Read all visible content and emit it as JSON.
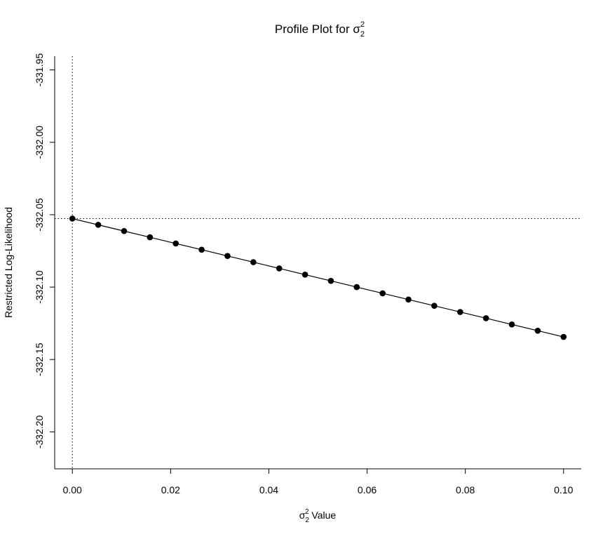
{
  "chart_data": {
    "type": "line",
    "title_prefix": "Profile Plot for ",
    "title_symbol": "σ",
    "symbol_sub": "2",
    "symbol_sup": "2",
    "xlabel_suffix": " Value",
    "ylabel": "Restricted Log-Likelihood",
    "xlim": [
      -0.0036,
      0.1036
    ],
    "ylim": [
      -332.2255,
      -331.9405
    ],
    "xticks": [
      0.0,
      0.02,
      0.04,
      0.06,
      0.08,
      0.1
    ],
    "xtick_labels": [
      "0.00",
      "0.02",
      "0.04",
      "0.06",
      "0.08",
      "0.10"
    ],
    "yticks": [
      -331.95,
      -332.0,
      -332.05,
      -332.1,
      -332.15,
      -332.2
    ],
    "ytick_labels": [
      "-331.95",
      "-332.00",
      "-332.05",
      "-332.10",
      "-332.15",
      "-332.20"
    ],
    "reference_lines": {
      "vertical_x": 0.0,
      "horizontal_y": -332.0527
    },
    "series": [
      {
        "x": [
          0.0,
          0.00526,
          0.01053,
          0.01579,
          0.02105,
          0.02632,
          0.03158,
          0.03684,
          0.04211,
          0.04737,
          0.05263,
          0.05789,
          0.06316,
          0.06842,
          0.07368,
          0.07895,
          0.08421,
          0.08947,
          0.09474,
          0.1
        ],
        "values": [
          -332.0527,
          -332.057,
          -332.0613,
          -332.0656,
          -332.0699,
          -332.0742,
          -332.0785,
          -332.0828,
          -332.0871,
          -332.0914,
          -332.0957,
          -332.1,
          -332.1043,
          -332.1086,
          -332.1129,
          -332.1172,
          -332.1215,
          -332.1258,
          -332.1301,
          -332.1344
        ]
      }
    ],
    "grid": false,
    "legend": "none"
  }
}
